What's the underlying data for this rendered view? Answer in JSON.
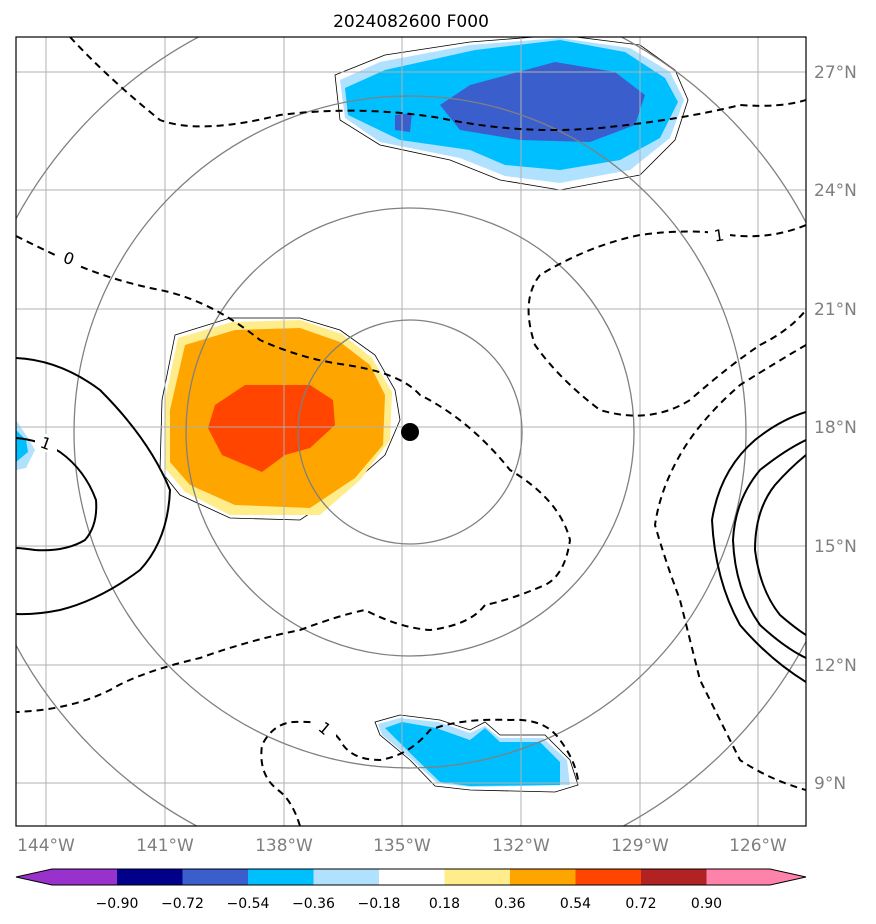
{
  "title": "2024082600 F000",
  "lon_labels": [
    "144°W",
    "141°W",
    "138°W",
    "135°W",
    "132°W",
    "129°W",
    "126°W"
  ],
  "lat_labels": [
    "27°N",
    "24°N",
    "21°N",
    "18°N",
    "15°N",
    "12°N",
    "9°N"
  ],
  "contour_labels": [
    "0",
    "1",
    "1",
    "1"
  ],
  "colorbar": {
    "ticks": [
      "−0.90",
      "−0.72",
      "−0.54",
      "−0.36",
      "−0.18",
      "0.18",
      "0.36",
      "0.54",
      "0.72",
      "0.90"
    ],
    "colors": [
      "#9932cc",
      "#00008b",
      "#3a5fcd",
      "#00bfff",
      "#b0e2ff",
      "#ffffff",
      "#ffec8b",
      "#ffa500",
      "#ff4500",
      "#b22222",
      "#ff82ab"
    ]
  },
  "colors": {
    "dark_blue": "#3a5fcd",
    "deep_sky_blue": "#00bfff",
    "light_blue": "#b0e2ff",
    "light_yellow": "#ffec8b",
    "orange": "#ffa500",
    "orange_red": "#ff4500",
    "grid": "#b0b0b0",
    "range_ring": "#808080",
    "center_marker": "#000000"
  }
}
